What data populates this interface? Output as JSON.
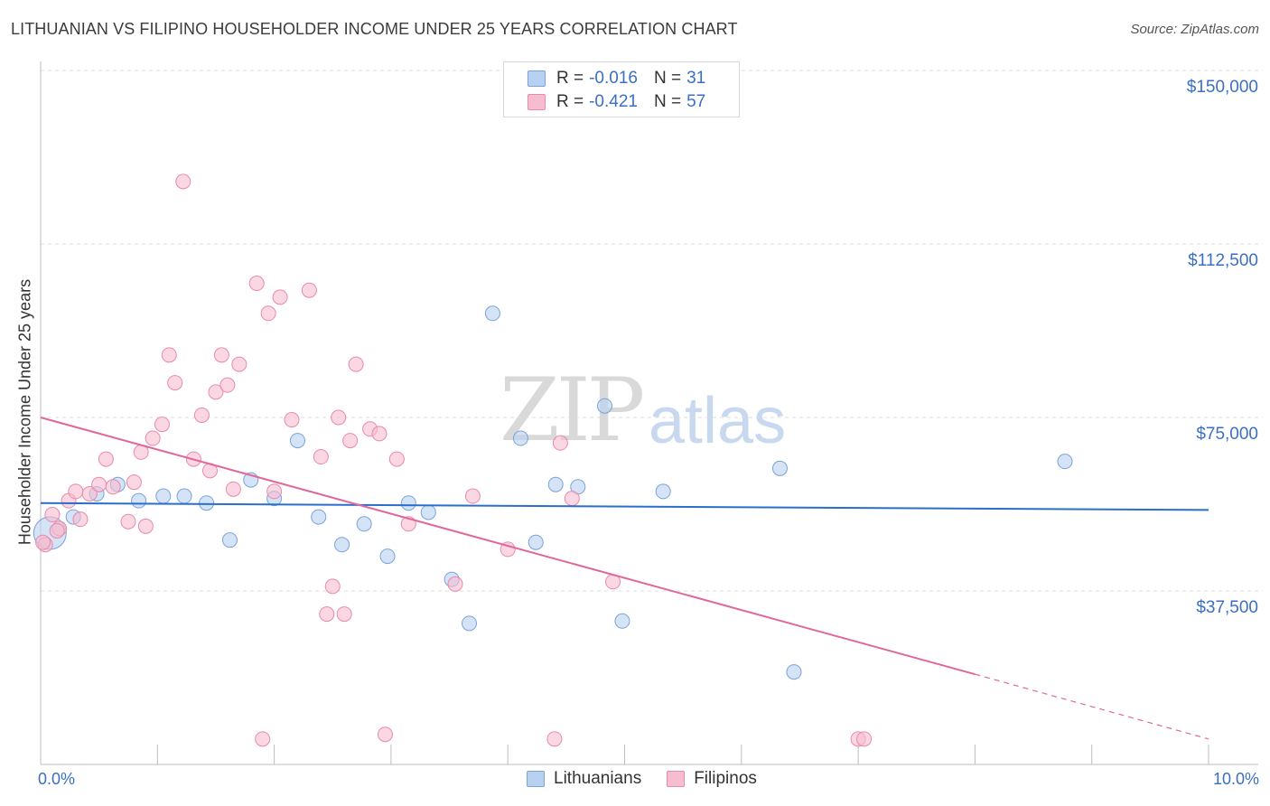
{
  "header": {
    "title": "LITHUANIAN VS FILIPINO HOUSEHOLDER INCOME UNDER 25 YEARS CORRELATION CHART",
    "source": "Source: ZipAtlas.com"
  },
  "watermark": {
    "zip": "ZIP",
    "atlas": "atlas"
  },
  "legend_top": [
    {
      "r_label": "R =",
      "r_value": "-0.016",
      "n_label": "N =",
      "n_value": "31"
    },
    {
      "r_label": "R =",
      "r_value": "-0.421",
      "n_label": "N =",
      "n_value": "57"
    }
  ],
  "legend_bottom": [
    "Lithuanians",
    "Filipinos"
  ],
  "colors": {
    "blue_fill": "#b9d1f0",
    "blue_stroke": "#7aa3d8",
    "blue_line": "#2a6fcb",
    "pink_fill": "#f6bcd0",
    "pink_stroke": "#e88aab",
    "pink_line": "#e0679a",
    "grid": "#dddddd",
    "axis_text": "#3a6fc4"
  },
  "chart_data": {
    "type": "scatter",
    "title": "LITHUANIAN VS FILIPINO HOUSEHOLDER INCOME UNDER 25 YEARS CORRELATION CHART",
    "xlabel_left": "0.0%",
    "xlabel_right": "10.0%",
    "ylabel": "Householder Income Under 25 years",
    "xlim": [
      0,
      10
    ],
    "ylim": [
      0,
      155000
    ],
    "yticks": [
      {
        "value": 37500,
        "label": "$37,500"
      },
      {
        "value": 75000,
        "label": "$75,000"
      },
      {
        "value": 112500,
        "label": "$112,500"
      },
      {
        "value": 150000,
        "label": "$150,000"
      }
    ],
    "series": [
      {
        "name": "Lithuanians",
        "r": -0.016,
        "n": 31,
        "trend": {
          "x0": 0.0,
          "y0": 56500,
          "x1": 10.0,
          "y1": 55000
        },
        "points": [
          {
            "x": 0.08,
            "y": 50000,
            "s": 18
          },
          {
            "x": 0.28,
            "y": 53500
          },
          {
            "x": 0.48,
            "y": 58500
          },
          {
            "x": 0.66,
            "y": 60500
          },
          {
            "x": 0.84,
            "y": 57000
          },
          {
            "x": 1.05,
            "y": 58000
          },
          {
            "x": 1.23,
            "y": 58000
          },
          {
            "x": 1.42,
            "y": 56500
          },
          {
            "x": 1.62,
            "y": 48500
          },
          {
            "x": 1.8,
            "y": 61500
          },
          {
            "x": 2.0,
            "y": 57500
          },
          {
            "x": 2.2,
            "y": 70000
          },
          {
            "x": 2.38,
            "y": 53500
          },
          {
            "x": 2.58,
            "y": 47500
          },
          {
            "x": 2.77,
            "y": 52000
          },
          {
            "x": 2.97,
            "y": 45000
          },
          {
            "x": 3.15,
            "y": 56500
          },
          {
            "x": 3.32,
            "y": 54500
          },
          {
            "x": 3.52,
            "y": 40000
          },
          {
            "x": 3.67,
            "y": 30500
          },
          {
            "x": 3.87,
            "y": 97500
          },
          {
            "x": 4.11,
            "y": 70500
          },
          {
            "x": 4.24,
            "y": 48000
          },
          {
            "x": 4.41,
            "y": 60500
          },
          {
            "x": 4.6,
            "y": 60000
          },
          {
            "x": 4.83,
            "y": 77500
          },
          {
            "x": 4.98,
            "y": 31000
          },
          {
            "x": 5.33,
            "y": 59000
          },
          {
            "x": 6.33,
            "y": 64000
          },
          {
            "x": 6.45,
            "y": 20000
          },
          {
            "x": 8.77,
            "y": 65500
          }
        ]
      },
      {
        "name": "Filipinos",
        "r": -0.421,
        "n": 57,
        "trend": {
          "x0": 0.0,
          "y0": 75000,
          "x1": 8.0,
          "y1": 19500,
          "dash_x1": 10.0,
          "dash_y1": 5500
        },
        "points": [
          {
            "x": 0.04,
            "y": 47500
          },
          {
            "x": 0.1,
            "y": 54000
          },
          {
            "x": 0.16,
            "y": 51000
          },
          {
            "x": 0.24,
            "y": 57000
          },
          {
            "x": 0.3,
            "y": 59000
          },
          {
            "x": 0.34,
            "y": 53000
          },
          {
            "x": 0.42,
            "y": 58500
          },
          {
            "x": 0.5,
            "y": 60500
          },
          {
            "x": 0.56,
            "y": 66000
          },
          {
            "x": 0.62,
            "y": 60000
          },
          {
            "x": 0.75,
            "y": 52500
          },
          {
            "x": 0.8,
            "y": 61000
          },
          {
            "x": 0.86,
            "y": 67500
          },
          {
            "x": 0.9,
            "y": 51500
          },
          {
            "x": 0.96,
            "y": 70500
          },
          {
            "x": 1.04,
            "y": 73500
          },
          {
            "x": 1.1,
            "y": 88500
          },
          {
            "x": 1.15,
            "y": 82500
          },
          {
            "x": 1.22,
            "y": 126000
          },
          {
            "x": 1.31,
            "y": 66000
          },
          {
            "x": 1.38,
            "y": 75500
          },
          {
            "x": 1.45,
            "y": 63500
          },
          {
            "x": 1.5,
            "y": 80500
          },
          {
            "x": 1.55,
            "y": 88500
          },
          {
            "x": 1.6,
            "y": 82000
          },
          {
            "x": 1.65,
            "y": 59500
          },
          {
            "x": 1.7,
            "y": 86500
          },
          {
            "x": 1.85,
            "y": 104000
          },
          {
            "x": 1.9,
            "y": 5500
          },
          {
            "x": 1.95,
            "y": 97500
          },
          {
            "x": 2.0,
            "y": 59000
          },
          {
            "x": 2.05,
            "y": 101000
          },
          {
            "x": 2.15,
            "y": 74500
          },
          {
            "x": 2.3,
            "y": 102500
          },
          {
            "x": 2.4,
            "y": 66500
          },
          {
            "x": 2.45,
            "y": 32500
          },
          {
            "x": 2.5,
            "y": 38500
          },
          {
            "x": 2.55,
            "y": 75000
          },
          {
            "x": 2.6,
            "y": 32500
          },
          {
            "x": 2.65,
            "y": 70000
          },
          {
            "x": 2.7,
            "y": 86500
          },
          {
            "x": 2.82,
            "y": 72500
          },
          {
            "x": 2.9,
            "y": 71500
          },
          {
            "x": 2.95,
            "y": 6500
          },
          {
            "x": 3.05,
            "y": 66000
          },
          {
            "x": 3.15,
            "y": 52000
          },
          {
            "x": 3.55,
            "y": 39000
          },
          {
            "x": 3.7,
            "y": 58000
          },
          {
            "x": 4.0,
            "y": 46500
          },
          {
            "x": 4.4,
            "y": 5500
          },
          {
            "x": 4.45,
            "y": 69500
          },
          {
            "x": 4.55,
            "y": 57500
          },
          {
            "x": 4.9,
            "y": 39500
          },
          {
            "x": 7.0,
            "y": 5500
          },
          {
            "x": 7.05,
            "y": 5500
          },
          {
            "x": 0.02,
            "y": 48000
          },
          {
            "x": 0.14,
            "y": 50500
          }
        ]
      }
    ]
  }
}
